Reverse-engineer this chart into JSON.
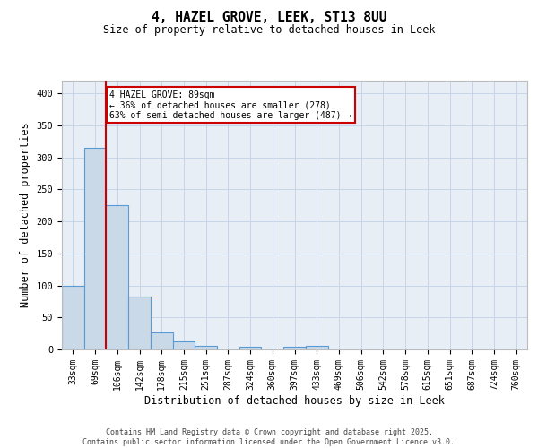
{
  "title1": "4, HAZEL GROVE, LEEK, ST13 8UU",
  "title2": "Size of property relative to detached houses in Leek",
  "xlabel": "Distribution of detached houses by size in Leek",
  "ylabel": "Number of detached properties",
  "categories": [
    "33sqm",
    "69sqm",
    "106sqm",
    "142sqm",
    "178sqm",
    "215sqm",
    "251sqm",
    "287sqm",
    "324sqm",
    "360sqm",
    "397sqm",
    "433sqm",
    "469sqm",
    "506sqm",
    "542sqm",
    "578sqm",
    "615sqm",
    "651sqm",
    "687sqm",
    "724sqm",
    "760sqm"
  ],
  "values": [
    100,
    315,
    225,
    83,
    26,
    12,
    5,
    0,
    4,
    0,
    4,
    6,
    0,
    0,
    0,
    0,
    0,
    0,
    0,
    0,
    0
  ],
  "bar_color": "#c9d9e8",
  "bar_edge_color": "#5b9bd5",
  "red_line_x": 1.5,
  "annotation_text": "4 HAZEL GROVE: 89sqm\n← 36% of detached houses are smaller (278)\n63% of semi-detached houses are larger (487) →",
  "annotation_box_color": "#ffffff",
  "annotation_box_edge": "#cc0000",
  "ylim": [
    0,
    420
  ],
  "yticks": [
    0,
    50,
    100,
    150,
    200,
    250,
    300,
    350,
    400
  ],
  "footer1": "Contains HM Land Registry data © Crown copyright and database right 2025.",
  "footer2": "Contains public sector information licensed under the Open Government Licence v3.0.",
  "background_color": "#ffffff",
  "grid_color": "#c8d4e8",
  "ax_facecolor": "#e8eef5"
}
